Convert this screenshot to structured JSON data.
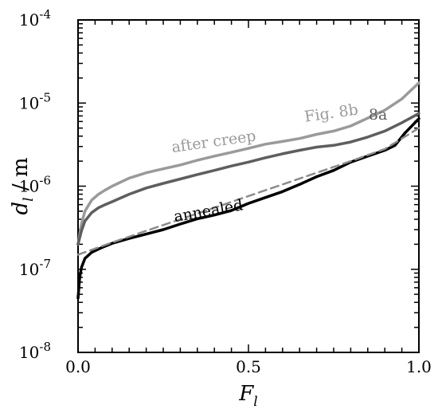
{
  "chart_data": {
    "type": "line",
    "xlabel": "F_l",
    "ylabel": "d_l / m",
    "xlim": [
      0.0,
      1.0
    ],
    "ylim": [
      1e-08,
      0.0001
    ],
    "yscale": "log",
    "grid": false,
    "x_ticks": [
      {
        "value": 0.0,
        "label": "0.0"
      },
      {
        "value": 0.5,
        "label": "0.5"
      },
      {
        "value": 1.0,
        "label": "1.0"
      }
    ],
    "y_ticks": [
      {
        "exp": -8,
        "base": "10",
        "sup": "-8"
      },
      {
        "exp": -7,
        "base": "10",
        "sup": "-7"
      },
      {
        "exp": -6,
        "base": "10",
        "sup": "-6"
      },
      {
        "exp": -5,
        "base": "10",
        "sup": "-5"
      },
      {
        "exp": -4,
        "base": "10",
        "sup": "-4"
      }
    ],
    "series": [
      {
        "name": "after creep  Fig. 8b",
        "color": "#9a9a9a",
        "dashed": false,
        "x": [
          0.0,
          0.01,
          0.02,
          0.04,
          0.06,
          0.08,
          0.1,
          0.15,
          0.2,
          0.25,
          0.3,
          0.35,
          0.4,
          0.45,
          0.5,
          0.55,
          0.6,
          0.65,
          0.7,
          0.75,
          0.8,
          0.85,
          0.9,
          0.95,
          1.0
        ],
        "y": [
          2e-07,
          3.5e-07,
          5e-07,
          6.8e-07,
          8e-07,
          9e-07,
          1e-06,
          1.25e-06,
          1.45e-06,
          1.62e-06,
          1.8e-06,
          2.05e-06,
          2.3e-06,
          2.55e-06,
          2.85e-06,
          3.2e-06,
          3.45e-06,
          3.75e-06,
          4.2e-06,
          4.6e-06,
          5.3e-06,
          6.6e-06,
          8.2e-06,
          1.12e-05,
          1.75e-05
        ]
      },
      {
        "name": "8a",
        "color": "#5e5e5e",
        "dashed": false,
        "x": [
          0.0,
          0.01,
          0.02,
          0.04,
          0.06,
          0.08,
          0.1,
          0.15,
          0.2,
          0.25,
          0.3,
          0.35,
          0.4,
          0.45,
          0.5,
          0.55,
          0.6,
          0.65,
          0.7,
          0.75,
          0.8,
          0.85,
          0.9,
          0.95,
          1.0
        ],
        "y": [
          2e-07,
          2.9e-07,
          3.8e-07,
          4.8e-07,
          5.5e-07,
          6e-07,
          6.5e-07,
          8e-07,
          9.5e-07,
          1.08e-06,
          1.22e-06,
          1.38e-06,
          1.55e-06,
          1.75e-06,
          1.95e-06,
          2.2e-06,
          2.45e-06,
          2.7e-06,
          2.95e-06,
          3.1e-06,
          3.4e-06,
          3.9e-06,
          4.6e-06,
          5.8e-06,
          7.5e-06
        ]
      },
      {
        "name": "annealed",
        "color": "#000000",
        "dashed": false,
        "x": [
          0.0,
          0.005,
          0.01,
          0.02,
          0.04,
          0.06,
          0.08,
          0.1,
          0.15,
          0.2,
          0.25,
          0.3,
          0.35,
          0.4,
          0.45,
          0.5,
          0.55,
          0.6,
          0.65,
          0.7,
          0.75,
          0.8,
          0.85,
          0.9,
          0.93,
          0.96,
          1.0
        ],
        "y": [
          4.5e-08,
          8e-08,
          1.05e-07,
          1.35e-07,
          1.6e-07,
          1.75e-07,
          1.9e-07,
          2.05e-07,
          2.35e-07,
          2.65e-07,
          3e-07,
          3.5e-07,
          4.05e-07,
          4.5e-07,
          5.1e-07,
          6.2e-07,
          7.3e-07,
          8.6e-07,
          1.05e-06,
          1.3e-06,
          1.55e-06,
          1.95e-06,
          2.3e-06,
          2.7e-06,
          3.1e-06,
          4.4e-06,
          6.5e-06
        ]
      },
      {
        "name": "",
        "color": "#8c8c8c",
        "dashed": true,
        "x": [
          0.0,
          0.1,
          0.2,
          0.3,
          0.4,
          0.5,
          0.6,
          0.7,
          0.8,
          0.9,
          1.0
        ],
        "y": [
          1.5e-07,
          2.1e-07,
          2.9e-07,
          4e-07,
          5.5e-07,
          7.6e-07,
          1.05e-06,
          1.45e-06,
          2e-06,
          2.8e-06,
          5e-06
        ]
      }
    ],
    "annotations": [
      {
        "text": "after creep",
        "color": "#9a9a9a",
        "x": 0.4,
        "y": 3e-06,
        "rotate": -8
      },
      {
        "text": "Fig. 8b",
        "color": "#9a9a9a",
        "x": 0.745,
        "y": 6.6e-06,
        "rotate": -8
      },
      {
        "text": "8a",
        "color": "#5e5e5e",
        "x": 0.88,
        "y": 6.3e-06,
        "rotate": 0
      },
      {
        "text": "annealed",
        "color": "#000000",
        "x": 0.385,
        "y": 4.4e-07,
        "rotate": -10
      }
    ]
  }
}
